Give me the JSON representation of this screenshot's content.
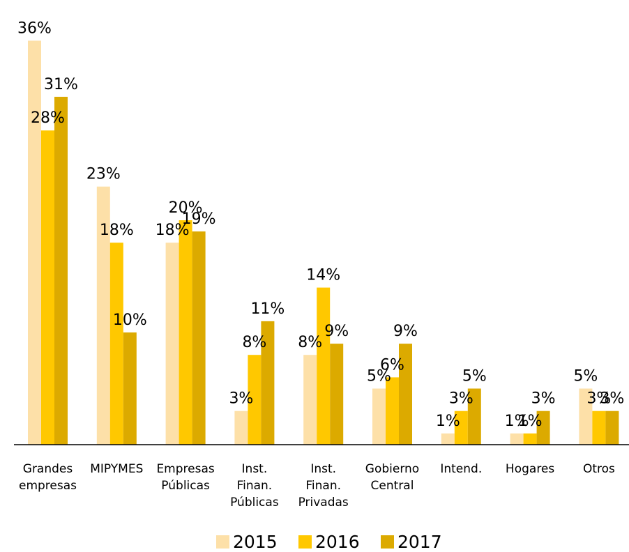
{
  "chart_data": {
    "type": "bar",
    "categories": [
      [
        "Grandes",
        "empresas"
      ],
      [
        "MIPYMES"
      ],
      [
        "Empresas",
        "Públicas"
      ],
      [
        "Inst.",
        "Finan.",
        "Públicas"
      ],
      [
        "Inst.",
        "Finan.",
        "Privadas"
      ],
      [
        "Gobierno",
        "Central"
      ],
      [
        "Intend."
      ],
      [
        "Hogares"
      ],
      [
        "Otros"
      ]
    ],
    "series": [
      {
        "name": "2015",
        "color": "#fde0a8",
        "values": [
          36,
          23,
          18,
          3,
          8,
          5,
          1,
          1,
          5
        ],
        "labels": [
          "36%",
          "23%",
          "18%",
          "3%",
          "8%",
          "5%",
          "1%",
          "1%",
          "5%"
        ]
      },
      {
        "name": "2016",
        "color": "#ffc800",
        "values": [
          28,
          18,
          20,
          8,
          14,
          6,
          3,
          1,
          3
        ],
        "labels": [
          "28%",
          "18%",
          "20%",
          "8%",
          "14%",
          "6%",
          "3%",
          "1%",
          "3%"
        ]
      },
      {
        "name": "2017",
        "color": "#dcaa00",
        "values": [
          31,
          10,
          19,
          11,
          9,
          9,
          5,
          3,
          3
        ],
        "labels": [
          "31%",
          "10%",
          "19%",
          "11%",
          "9%",
          "9%",
          "5%",
          "3%",
          "3%"
        ]
      }
    ],
    "legend_position": "bottom",
    "grid": false
  }
}
